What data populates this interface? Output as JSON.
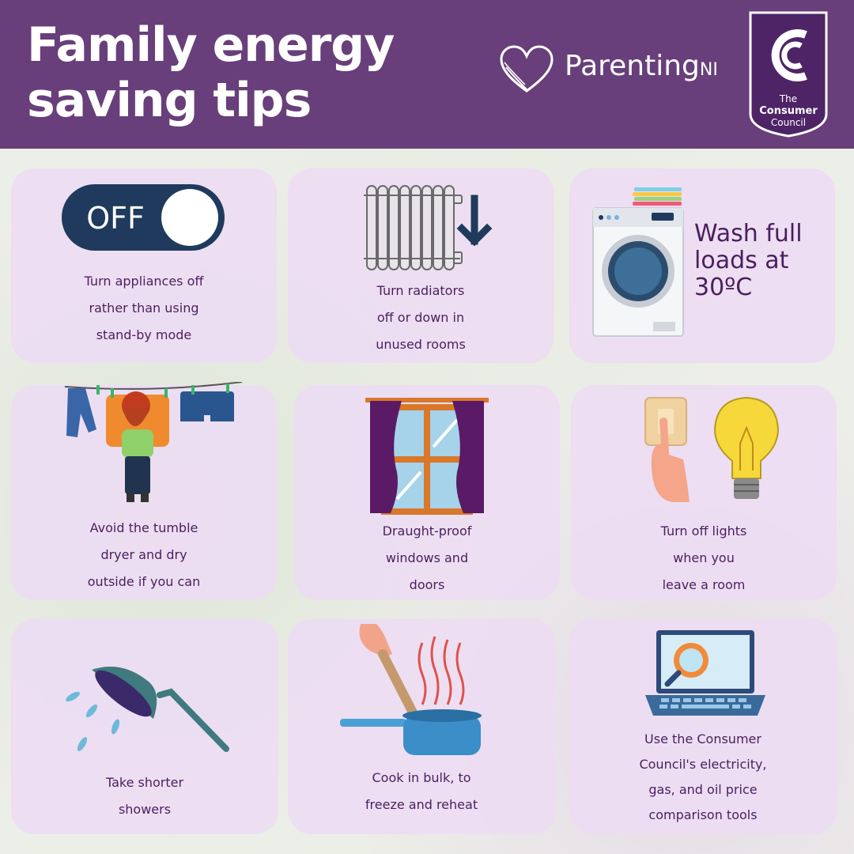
{
  "header": {
    "title_lines": [
      "Family energy",
      "saving tips"
    ],
    "parenting_ni": {
      "name": "Parenting",
      "suffix": "NI"
    },
    "consumer_council": {
      "line1": "The",
      "line2": "Consumer",
      "line3": "Council"
    }
  },
  "tips": [
    {
      "id": "appliances",
      "lines": [
        "Turn appliances off",
        "rather than using",
        "stand-by mode"
      ],
      "toggle_label": "OFF",
      "icon": "off-toggle-icon"
    },
    {
      "id": "radiators",
      "lines": [
        "Turn radiators",
        "off or down in",
        "unused rooms"
      ],
      "icon": "radiator-icon"
    },
    {
      "id": "washing",
      "lines": [
        "Wash full",
        "loads at",
        "30ºC"
      ],
      "icon": "washing-machine-icon"
    },
    {
      "id": "drying",
      "lines": [
        "Avoid the tumble",
        "dryer and dry",
        "outside if you can"
      ],
      "icon": "clothesline-icon"
    },
    {
      "id": "draught",
      "lines": [
        "Draught-proof",
        "windows and",
        "doors"
      ],
      "icon": "window-icon"
    },
    {
      "id": "lights",
      "lines": [
        "Turn off lights",
        "when you",
        "leave a room"
      ],
      "icon": "light-bulb-icon"
    },
    {
      "id": "showers",
      "lines": [
        "Take shorter",
        "showers"
      ],
      "icon": "shower-icon"
    },
    {
      "id": "cooking",
      "lines": [
        "Cook in bulk, to",
        "freeze and reheat"
      ],
      "icon": "cooking-pot-icon"
    },
    {
      "id": "comparison",
      "lines": [
        "Use the Consumer",
        "Council's electricity,",
        "gas, and oil price",
        "comparison tools"
      ],
      "icon": "laptop-search-icon"
    }
  ],
  "colors": {
    "header": "#683f7a",
    "card": "#eddcf3",
    "text": "#4a1f5e",
    "toggle": "#1f3a5c"
  }
}
